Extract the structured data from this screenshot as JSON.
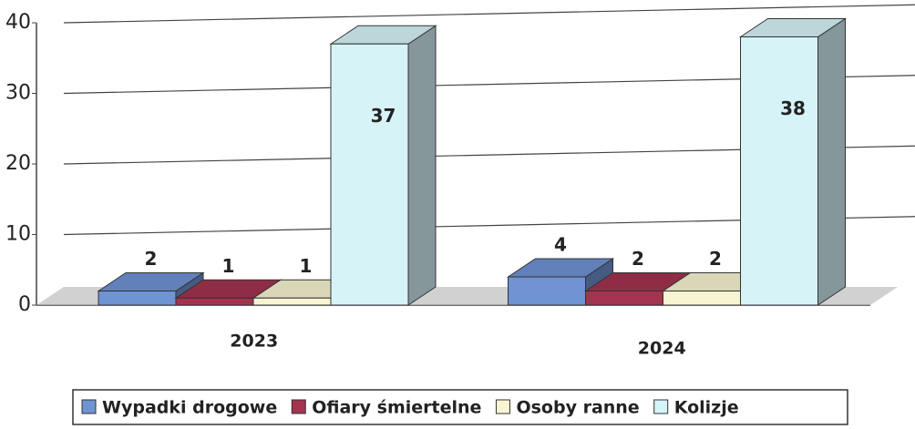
{
  "chart_data": {
    "type": "bar",
    "categories": [
      "2023",
      "2024"
    ],
    "series": [
      {
        "name": "Wypadki drogowe",
        "color": "#6f93d3",
        "values": [
          2,
          4
        ]
      },
      {
        "name": "Ofiary śmiertelne",
        "color": "#a3334f",
        "values": [
          1,
          2
        ]
      },
      {
        "name": "Osoby ranne",
        "color": "#f8f4d2",
        "values": [
          1,
          2
        ]
      },
      {
        "name": "Kolizje",
        "color": "#d6f3f8",
        "values": [
          37,
          38
        ]
      }
    ],
    "ylim": [
      0,
      40
    ],
    "yticks": [
      0,
      10,
      20,
      30,
      40
    ],
    "grid": true,
    "legend": "bottom"
  }
}
